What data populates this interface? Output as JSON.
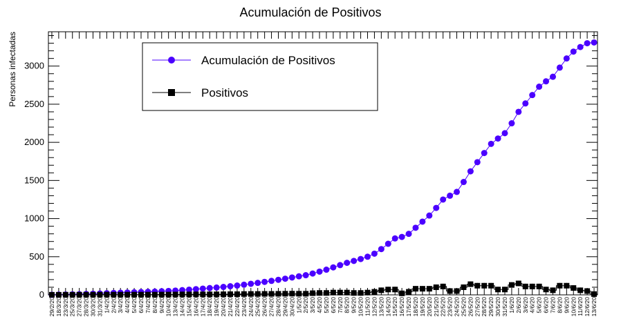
{
  "chart_data": {
    "type": "line",
    "title": "Acumulación de Positivos",
    "xlabel": "",
    "ylabel": "Personas infectadas",
    "ylim": [
      0,
      3450
    ],
    "yticks": [
      0,
      500,
      1000,
      1500,
      2000,
      2500,
      3000
    ],
    "grid": false,
    "legend_position": "top-left",
    "categories": [
      "29/2/20",
      "18/3/20",
      "23/3/20",
      "25/3/20",
      "27/3/20",
      "28/3/20",
      "30/3/20",
      "31/3/20",
      "1/4/20",
      "2/4/20",
      "3/4/20",
      "4/4/20",
      "5/4/20",
      "6/4/20",
      "7/4/20",
      "8/4/20",
      "9/4/20",
      "10/4/20",
      "13/4/20",
      "14/4/20",
      "15/4/20",
      "16/4/20",
      "17/4/20",
      "18/4/20",
      "19/4/20",
      "20/4/20",
      "21/4/20",
      "22/4/20",
      "23/4/20",
      "24/4/20",
      "25/4/20",
      "26/4/20",
      "27/4/20",
      "28/4/20",
      "29/4/20",
      "30/4/20",
      "1/5/20",
      "2/5/20",
      "3/5/20",
      "4/5/20",
      "5/5/20",
      "6/5/20",
      "7/5/20",
      "8/5/20",
      "9/5/20",
      "10/5/20",
      "11/5/20",
      "12/5/20",
      "13/5/20",
      "14/5/20",
      "15/5/20",
      "16/5/20",
      "17/5/20",
      "18/5/20",
      "19/5/20",
      "20/5/20",
      "21/5/20",
      "22/5/20",
      "23/5/20",
      "24/5/20",
      "25/5/20",
      "26/5/20",
      "27/5/20",
      "28/5/20",
      "29/5/20",
      "30/5/20",
      "31/5/20",
      "1/6/20",
      "2/6/20",
      "3/6/20",
      "4/6/20",
      "5/6/20",
      "6/6/20",
      "7/6/20",
      "8/6/20",
      "9/6/20",
      "10/6/20",
      "11/6/20",
      "12/6/20",
      "13/6/20"
    ],
    "series": [
      {
        "name": "Acumulación de Positivos",
        "color": "#4b00ff",
        "marker": "circle",
        "values": [
          1,
          3,
          5,
          7,
          9,
          12,
          15,
          18,
          22,
          25,
          28,
          31,
          34,
          37,
          40,
          43,
          47,
          51,
          56,
          62,
          68,
          75,
          82,
          89,
          96,
          104,
          113,
          122,
          133,
          145,
          157,
          170,
          183,
          197,
          212,
          228,
          243,
          258,
          280,
          305,
          330,
          360,
          390,
          420,
          445,
          470,
          500,
          540,
          600,
          670,
          740,
          760,
          800,
          880,
          960,
          1040,
          1140,
          1250,
          1300,
          1350,
          1480,
          1620,
          1740,
          1860,
          1980,
          2050,
          2120,
          2250,
          2400,
          2510,
          2620,
          2730,
          2800,
          2860,
          2980,
          3100,
          3190,
          3250,
          3300,
          3310
        ],
        "draw_line": true
      },
      {
        "name": "Positivos",
        "color": "#000000",
        "marker": "square",
        "values": [
          1,
          1,
          2,
          2,
          2,
          3,
          3,
          3,
          4,
          3,
          3,
          3,
          3,
          3,
          3,
          3,
          4,
          4,
          5,
          6,
          6,
          7,
          7,
          7,
          7,
          8,
          9,
          9,
          11,
          12,
          12,
          13,
          13,
          14,
          15,
          16,
          15,
          15,
          22,
          25,
          25,
          30,
          30,
          30,
          25,
          25,
          30,
          40,
          60,
          70,
          70,
          20,
          40,
          80,
          80,
          80,
          100,
          110,
          50,
          50,
          100,
          140,
          120,
          120,
          120,
          70,
          70,
          130,
          150,
          110,
          110,
          110,
          70,
          60,
          120,
          120,
          90,
          60,
          50,
          10
        ],
        "draw_line": false
      }
    ]
  }
}
